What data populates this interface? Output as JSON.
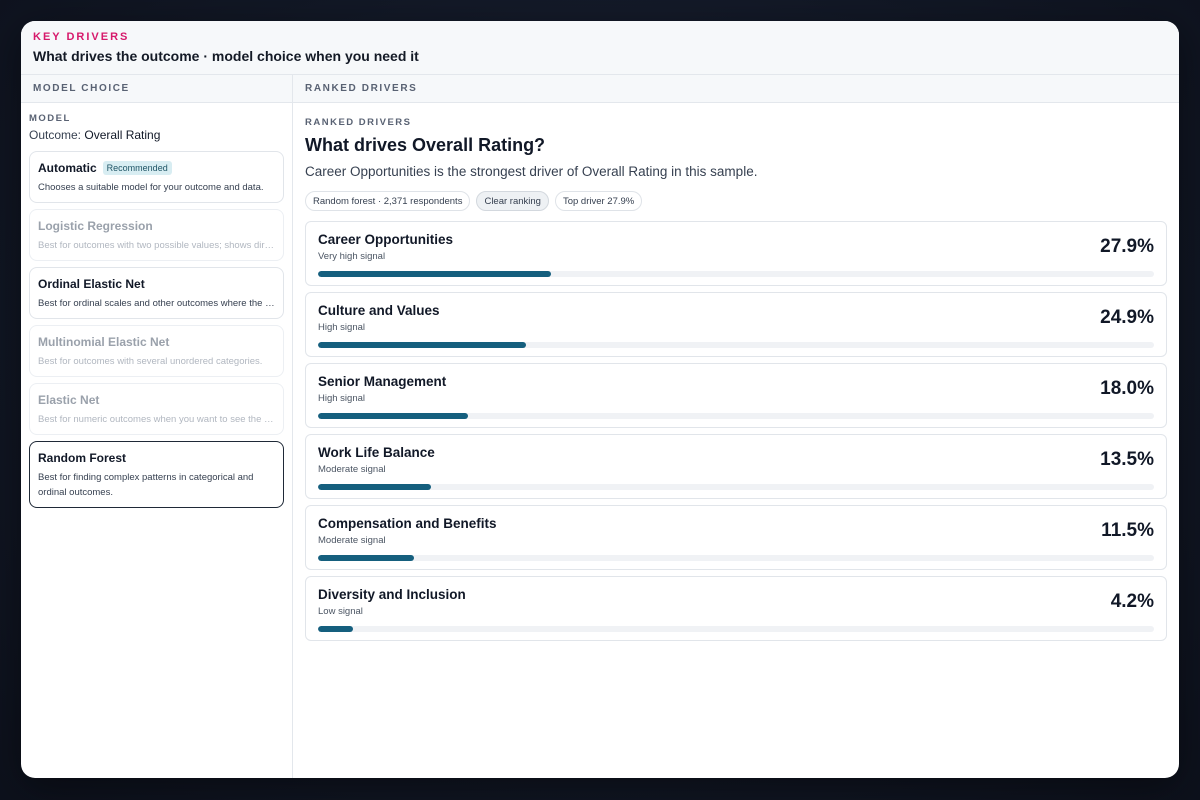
{
  "header": {
    "eyebrow": "KEY DRIVERS",
    "title": "What drives the outcome · model choice when you need it"
  },
  "left_panel": {
    "header": "MODEL CHOICE",
    "model_label": "MODEL",
    "outcome_prefix": "Outcome:",
    "outcome_value": "Overall Rating",
    "models": [
      {
        "name": "Automatic",
        "badge": "Recommended",
        "desc": "Chooses a suitable model for your outcome and data.",
        "state": "available"
      },
      {
        "name": "Logistic Regression",
        "badge": "",
        "desc": "Best for outcomes with two possible values; shows direction of effect.",
        "state": "disabled"
      },
      {
        "name": "Ordinal Elastic Net",
        "badge": "",
        "desc": "Best for ordinal scales and other outcomes where the order matters.",
        "state": "available"
      },
      {
        "name": "Multinomial Elastic Net",
        "badge": "",
        "desc": "Best for outcomes with several unordered categories.",
        "state": "disabled"
      },
      {
        "name": "Elastic Net",
        "badge": "",
        "desc": "Best for numeric outcomes when you want to see the direction of effect.",
        "state": "disabled"
      },
      {
        "name": "Random Forest",
        "badge": "",
        "desc": "Best for finding complex patterns in categorical and ordinal outcomes.",
        "state": "selected"
      }
    ]
  },
  "right_panel": {
    "header": "RANKED DRIVERS",
    "eyebrow": "RANKED DRIVERS",
    "title": "What drives Overall Rating?",
    "summary": "Career Opportunities is the strongest driver of Overall Rating in this sample.",
    "chips": [
      "Random forest · 2,371 respondents",
      "Clear ranking",
      "Top driver 27.9%"
    ],
    "drivers": [
      {
        "name": "Career Opportunities",
        "signal": "Very high signal",
        "value": "27.9%",
        "share": 0.279
      },
      {
        "name": "Culture and Values",
        "signal": "High signal",
        "value": "24.9%",
        "share": 0.249
      },
      {
        "name": "Senior Management",
        "signal": "High signal",
        "value": "18.0%",
        "share": 0.18
      },
      {
        "name": "Work Life Balance",
        "signal": "Moderate signal",
        "value": "13.5%",
        "share": 0.135
      },
      {
        "name": "Compensation and Benefits",
        "signal": "Moderate signal",
        "value": "11.5%",
        "share": 0.115
      },
      {
        "name": "Diversity and Inclusion",
        "signal": "Low signal",
        "value": "4.2%",
        "share": 0.042
      }
    ]
  },
  "colors": {
    "accent": "#d6196b",
    "bar_fill": "#155f7e",
    "badge_bg": "#d8edf2"
  }
}
